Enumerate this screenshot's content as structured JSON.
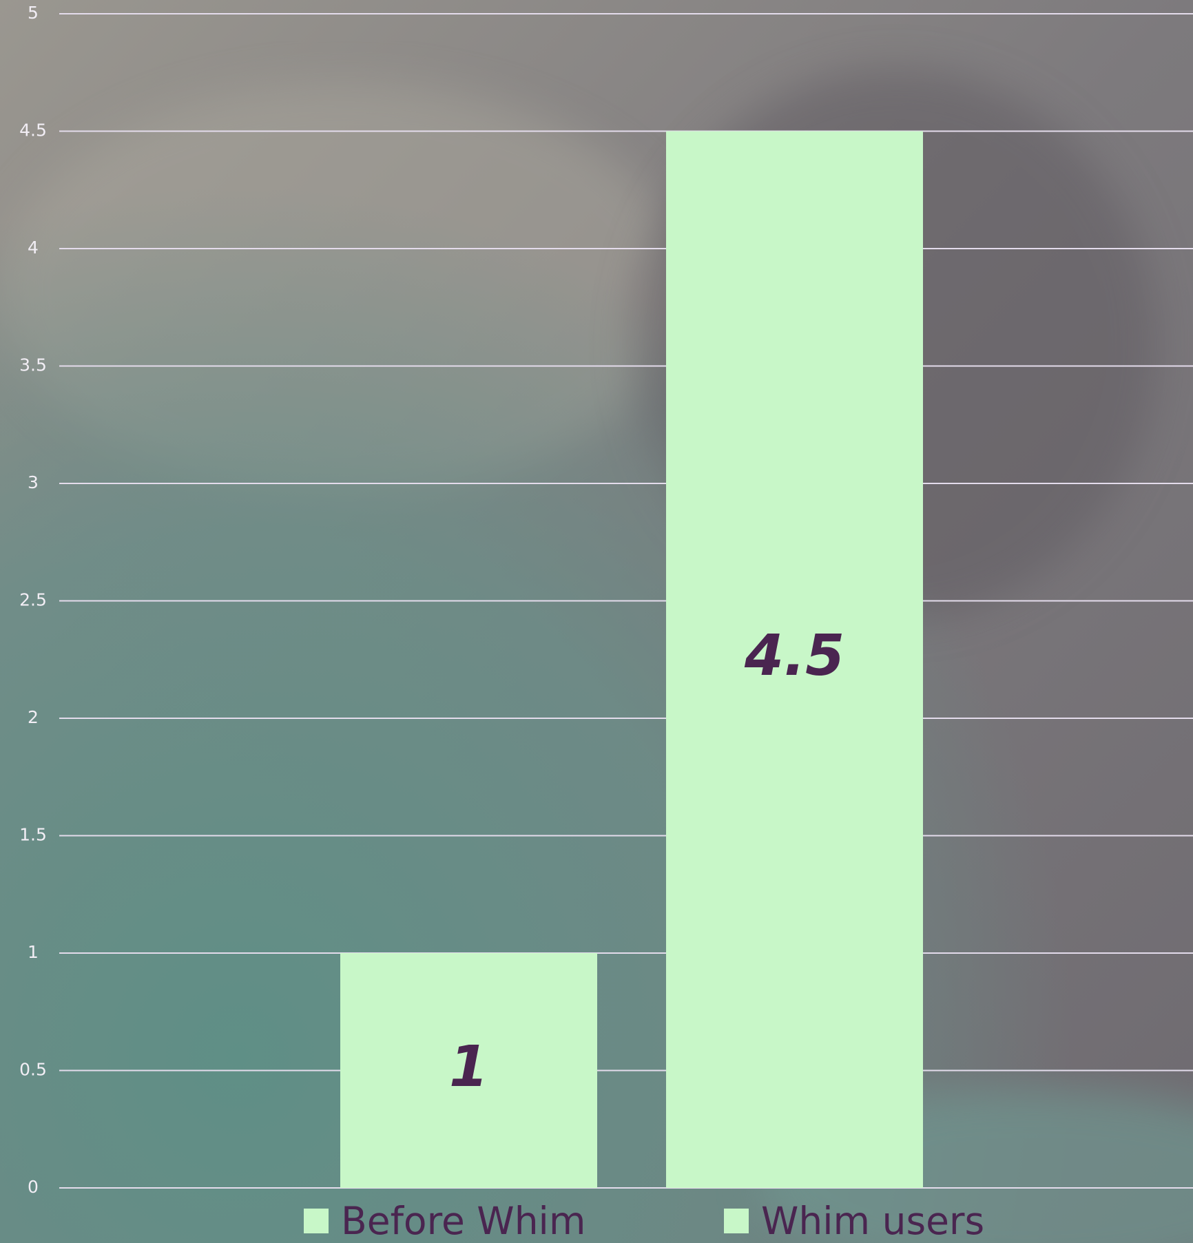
{
  "chart_data": {
    "type": "bar",
    "categories": [
      null
    ],
    "series": [
      {
        "name": "Before Whim",
        "color": "#c8f7c8",
        "values": [
          1
        ]
      },
      {
        "name": "Whim users",
        "color": "#c8f7c8",
        "values": [
          4.5
        ]
      }
    ],
    "ylim": [
      0,
      5
    ],
    "yticks": [
      0,
      0.5,
      1,
      1.5,
      2,
      2.5,
      3,
      3.5,
      4,
      4.5,
      5
    ],
    "grid": true,
    "legend": "bottom",
    "data_labels": true
  }
}
